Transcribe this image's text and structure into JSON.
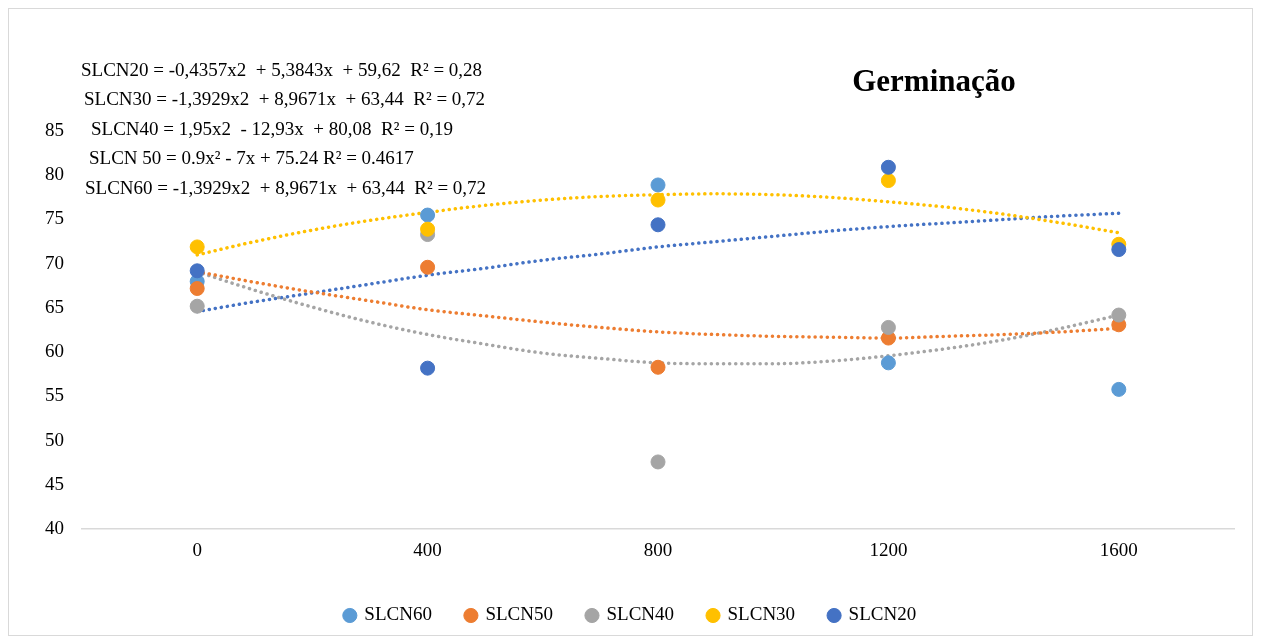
{
  "chart_data": {
    "type": "scatter",
    "title": "Germinação",
    "annotations": [
      "SLCN20 = -0,4357x2  + 5,3843x  + 59,62  R² = 0,28",
      "SLCN30 = -1,3929x2  + 8,9671x  + 63,44  R² = 0,72",
      "SLCN40 = 1,95x2  - 12,93x  + 80,08  R² = 0,19",
      "SLCN 50 = 0.9x² - 7x + 75.24 R² = 0.4617",
      "SLCN60 = -1,3929x2  + 8,9671x  + 63,44  R² = 0,72"
    ],
    "x": [
      0,
      400,
      800,
      1200,
      1600
    ],
    "xlim": [
      -200,
      1800
    ],
    "xticks": [
      0,
      400,
      800,
      1200,
      1600
    ],
    "ylim": [
      40,
      85
    ],
    "yticks": [
      40,
      45,
      50,
      55,
      60,
      65,
      70,
      75,
      80,
      85
    ],
    "grid": false,
    "legend": "bottom",
    "marker": "circle",
    "series": [
      {
        "name": "SLCN60",
        "color": "#5b9bd5",
        "values": [
          68.0,
          75.5,
          78.9,
          58.8,
          55.8
        ]
      },
      {
        "name": "SLCN50",
        "color": "#ed7d31",
        "values": [
          67.2,
          69.6,
          58.3,
          61.6,
          63.1
        ]
      },
      {
        "name": "SLCN40",
        "color": "#a5a5a5",
        "values": [
          65.2,
          73.3,
          47.6,
          62.8,
          64.2
        ]
      },
      {
        "name": "SLCN30",
        "color": "#ffc000",
        "values": [
          71.9,
          73.9,
          77.2,
          79.4,
          72.2
        ]
      },
      {
        "name": "SLCN20",
        "color": "#4472c4",
        "values": [
          69.2,
          58.2,
          74.4,
          80.9,
          71.6
        ]
      },
      {
        "type": "line",
        "color": "#ed7d31",
        "line_style": "dotted",
        "marker": "none",
        "x": [
          0,
          100,
          200,
          300,
          400,
          500,
          600,
          700,
          800,
          900,
          1000,
          1100,
          1200,
          1300,
          1400,
          1500,
          1600
        ],
        "values": [
          69.1,
          67.9,
          66.8,
          65.8,
          64.8,
          64.1,
          63.4,
          62.8,
          62.3,
          62.0,
          61.8,
          61.7,
          61.6,
          61.8,
          62.0,
          62.3,
          62.7
        ]
      },
      {
        "type": "line",
        "color": "#a5a5a5",
        "line_style": "dotted",
        "marker": "none",
        "x": [
          0,
          100,
          200,
          300,
          400,
          500,
          600,
          700,
          800,
          900,
          1000,
          1100,
          1200,
          1300,
          1400,
          1500,
          1600
        ],
        "values": [
          69.1,
          67.0,
          65.1,
          63.4,
          62.0,
          60.9,
          59.9,
          59.3,
          58.8,
          58.7,
          58.7,
          59.0,
          59.6,
          60.4,
          61.4,
          62.7,
          64.2
        ]
      },
      {
        "type": "line",
        "color": "#ffc000",
        "line_style": "dotted",
        "marker": "none",
        "x": [
          0,
          100,
          200,
          300,
          400,
          500,
          600,
          700,
          800,
          900,
          1000,
          1100,
          1200,
          1300,
          1400,
          1500,
          1600
        ],
        "values": [
          71.0,
          72.5,
          73.8,
          74.9,
          75.8,
          76.6,
          77.2,
          77.6,
          77.8,
          77.9,
          77.8,
          77.5,
          77.0,
          76.4,
          75.6,
          74.6,
          73.5
        ]
      },
      {
        "type": "line",
        "color": "#4472c4",
        "line_style": "dotted",
        "marker": "none",
        "x": [
          0,
          100,
          200,
          300,
          400,
          500,
          600,
          700,
          800,
          900,
          1000,
          1100,
          1200,
          1300,
          1400,
          1500,
          1600
        ],
        "values": [
          64.6,
          65.7,
          66.7,
          67.7,
          68.7,
          69.5,
          70.4,
          71.1,
          71.9,
          72.5,
          73.1,
          73.7,
          74.2,
          74.6,
          75.0,
          75.4,
          75.7
        ]
      }
    ]
  }
}
